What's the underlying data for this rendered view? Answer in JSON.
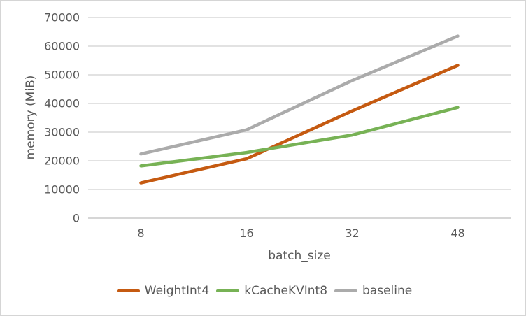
{
  "chart_data": {
    "type": "line",
    "title": "",
    "categories": [
      "8",
      "16",
      "32",
      "48"
    ],
    "series": [
      {
        "name": "WeightInt4",
        "color": "#C55A11",
        "values": [
          12300,
          20700,
          37400,
          53300
        ]
      },
      {
        "name": "kCacheKVInt8",
        "color": "#77B255",
        "values": [
          18200,
          22900,
          29000,
          38600
        ]
      },
      {
        "name": "baseline",
        "color": "#ABABAB",
        "values": [
          22400,
          30800,
          48000,
          63500
        ]
      }
    ],
    "xlabel": "batch_size",
    "ylabel": "memory (MiB)",
    "ylim": [
      0,
      70000
    ],
    "ytick_step": 10000,
    "grid": "horizontal",
    "legend_position": "bottom",
    "style": {
      "grid_color": "#D9D9D9",
      "axis_line_color": "#C8C8C8",
      "text_color": "#595959",
      "border_color": "#D5D5D5",
      "background": "#FFFFFF",
      "line_width": 4.5
    }
  }
}
